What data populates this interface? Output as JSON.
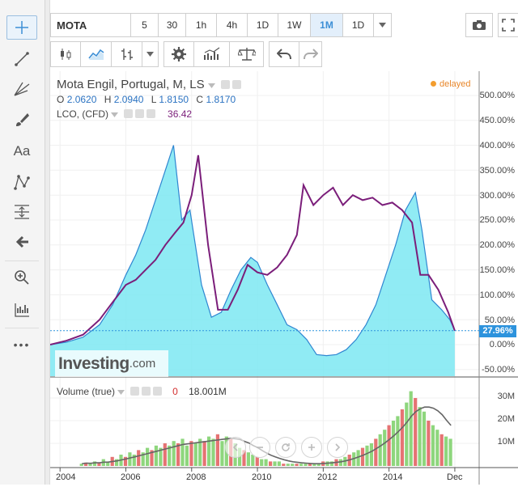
{
  "toolbar": {
    "symbol": "MOTA",
    "intervals": [
      {
        "label": "5",
        "active": false
      },
      {
        "label": "30",
        "active": false
      },
      {
        "label": "1h",
        "active": false
      },
      {
        "label": "4h",
        "active": false
      },
      {
        "label": "1D",
        "active": false
      },
      {
        "label": "1W",
        "active": false
      },
      {
        "label": "1M",
        "active": true
      },
      {
        "label": "1D",
        "active": false
      }
    ]
  },
  "left_tools": [
    "crosshair-icon",
    "trend-line-icon",
    "fib-icon",
    "brush-icon",
    "text-icon",
    "pattern-icon",
    "measure-icon",
    "back-arrow-icon",
    "zoom-icon",
    "indicator-icon",
    "more-icon"
  ],
  "left_tools_text": {
    "text_tool": "Aa",
    "more": "•••"
  },
  "legend": {
    "title": "Mota Engil, Portugal, M, LS",
    "o_label": "O",
    "o": "2.0620",
    "h_label": "H",
    "h": "2.0940",
    "l_label": "L",
    "l": "1.8150",
    "c_label": "C",
    "c": "1.8170",
    "compare_label": "LCO, (CFD)",
    "compare_value": "36.42",
    "delayed": "delayed"
  },
  "price_axis": {
    "ticks": [
      "500.00%",
      "450.00%",
      "400.00%",
      "350.00%",
      "300.00%",
      "250.00%",
      "200.00%",
      "150.00%",
      "100.00%",
      "50.00%",
      "0.00%",
      "-50.00%"
    ],
    "current": "27.96%"
  },
  "volume": {
    "label": "Volume (true)",
    "value0": "0",
    "value": "18.001M",
    "ticks": [
      "30M",
      "20M",
      "10M"
    ]
  },
  "watermark": {
    "brand": "Investing",
    "suffix": ".com"
  },
  "chart_data": {
    "type": "area",
    "x_labels": [
      "2004",
      "2006",
      "2008",
      "2010",
      "2012",
      "2014",
      "Dec"
    ],
    "ylim": [
      -50,
      500
    ],
    "series": [
      {
        "name": "Mota Engil, Portugal, M, LS",
        "color": "#2f86d1",
        "x": [
          2003.7,
          2004.2,
          2004.7,
          2005.2,
          2005.6,
          2006.0,
          2006.3,
          2006.6,
          2006.9,
          2007.2,
          2007.45,
          2007.7,
          2007.95,
          2008.3,
          2008.6,
          2008.9,
          2009.2,
          2009.5,
          2009.8,
          2010.0,
          2010.3,
          2010.6,
          2010.9,
          2011.2,
          2011.5,
          2011.8,
          2012.1,
          2012.4,
          2012.7,
          2013.0,
          2013.3,
          2013.6,
          2013.9,
          2014.2,
          2014.5,
          2014.8,
          2015.0,
          2015.3,
          2015.6,
          2015.85,
          2016.0
        ],
        "values": [
          0,
          5,
          15,
          40,
          80,
          140,
          180,
          230,
          290,
          350,
          400,
          250,
          270,
          120,
          55,
          65,
          110,
          150,
          175,
          165,
          120,
          80,
          40,
          30,
          10,
          -20,
          -22,
          -20,
          -10,
          10,
          40,
          80,
          140,
          200,
          270,
          305,
          230,
          90,
          70,
          50,
          27.96
        ]
      },
      {
        "name": "LCO, (CFD)",
        "color": "#7b1e7a",
        "x": [
          2003.7,
          2004.2,
          2004.7,
          2005.2,
          2005.6,
          2006.0,
          2006.3,
          2006.6,
          2006.9,
          2007.2,
          2007.5,
          2007.75,
          2008.0,
          2008.2,
          2008.5,
          2008.8,
          2009.1,
          2009.4,
          2009.7,
          2010.0,
          2010.3,
          2010.6,
          2010.9,
          2011.2,
          2011.4,
          2011.7,
          2012.0,
          2012.3,
          2012.6,
          2012.9,
          2013.2,
          2013.5,
          2013.8,
          2014.1,
          2014.4,
          2014.7,
          2014.95,
          2015.2,
          2015.5,
          2015.8,
          2016.0
        ],
        "values": [
          0,
          8,
          20,
          50,
          85,
          120,
          130,
          150,
          170,
          200,
          225,
          245,
          300,
          380,
          200,
          70,
          70,
          110,
          160,
          145,
          140,
          155,
          180,
          220,
          320,
          280,
          300,
          315,
          280,
          300,
          290,
          295,
          280,
          285,
          270,
          245,
          140,
          140,
          110,
          65,
          27.96
        ]
      }
    ],
    "volume": {
      "ylim": [
        0,
        35
      ],
      "unit": "M",
      "bars": [
        1,
        1.5,
        1,
        2,
        1.5,
        3,
        2,
        4,
        3,
        5,
        4,
        6,
        5,
        7,
        6,
        8,
        7,
        9,
        8,
        10,
        9,
        11,
        10,
        12,
        9,
        11,
        10,
        12,
        11,
        13,
        12,
        14,
        11,
        13,
        12,
        10,
        8,
        7,
        6,
        5,
        4,
        3,
        3,
        2,
        2,
        2,
        1,
        1,
        1,
        1,
        1,
        1,
        1,
        1,
        1,
        2,
        2,
        2,
        3,
        3,
        4,
        5,
        6,
        7,
        8,
        9,
        10,
        12,
        14,
        16,
        18,
        20,
        22,
        25,
        28,
        33,
        30,
        26,
        24,
        20,
        18,
        16,
        14,
        13,
        12
      ]
    }
  }
}
